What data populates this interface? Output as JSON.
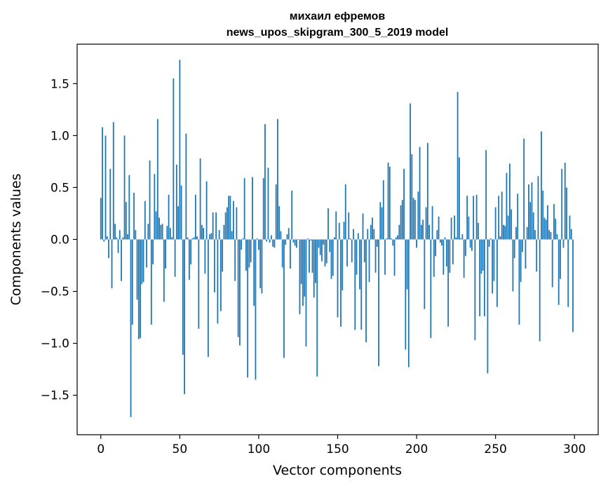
{
  "chart_data": {
    "type": "bar",
    "title": "михаил ефремов",
    "subtitle": "news_upos_skipgram_300_5_2019 model",
    "xlabel": "Vector components",
    "ylabel": "Components values",
    "xlim": [
      -15,
      315
    ],
    "ylim": [
      -1.88,
      1.88
    ],
    "x_ticks": [
      0,
      50,
      100,
      150,
      200,
      250,
      300
    ],
    "x_tick_labels": [
      "0",
      "50",
      "100",
      "150",
      "200",
      "250",
      "300"
    ],
    "y_ticks": [
      -1.5,
      -1.0,
      -0.5,
      0.0,
      0.5,
      1.0,
      1.5
    ],
    "y_tick_labels": [
      "−1.5",
      "−1.0",
      "−0.5",
      "0.0",
      "0.5",
      "1.0",
      "1.5"
    ],
    "bar_color": "#1f77b4",
    "grid": false,
    "x_start": 0,
    "values": [
      0.4,
      1.08,
      -0.02,
      1.0,
      0.03,
      -0.18,
      0.68,
      -0.47,
      1.13,
      0.15,
      0.02,
      -0.13,
      0.09,
      -0.4,
      0.02,
      1.0,
      0.36,
      0.05,
      0.62,
      -1.71,
      -0.82,
      0.45,
      0.09,
      -0.58,
      -0.96,
      -0.95,
      -0.43,
      -0.41,
      0.37,
      -0.27,
      0.15,
      0.76,
      -0.82,
      -0.24,
      0.63,
      0.27,
      1.16,
      0.21,
      0.14,
      0.15,
      -0.6,
      -0.28,
      0.13,
      0.43,
      0.11,
      0.02,
      1.55,
      -0.36,
      0.72,
      0.32,
      1.73,
      0.52,
      -1.11,
      -1.49,
      1.02,
      0.02,
      -0.39,
      -0.24,
      0.01,
      0.02,
      0.43,
      0.03,
      -0.86,
      0.78,
      0.14,
      0.11,
      -0.33,
      0.56,
      -1.13,
      0.05,
      0.06,
      0.26,
      -0.51,
      0.26,
      -0.81,
      0.09,
      -0.69,
      -0.31,
      0.14,
      0.26,
      0.31,
      0.42,
      0.42,
      0.08,
      0.37,
      -0.4,
      0.31,
      -0.94,
      -1.02,
      -0.1,
      0.01,
      0.59,
      -0.3,
      -1.33,
      -0.27,
      -0.22,
      0.6,
      -0.64,
      -1.35,
      0.01,
      -0.1,
      -0.47,
      -0.52,
      0.59,
      1.11,
      -0.02,
      0.69,
      -0.03,
      0.04,
      -0.07,
      -0.08,
      0.53,
      1.16,
      0.32,
      0.08,
      -0.27,
      -1.14,
      -0.05,
      0.05,
      0.11,
      -0.28,
      0.47,
      -0.03,
      -0.06,
      -0.08,
      0.0,
      -0.72,
      -0.43,
      -0.64,
      -0.55,
      -1.03,
      0.01,
      -0.32,
      -0.01,
      -0.32,
      -0.56,
      -0.42,
      -1.32,
      -0.08,
      -0.15,
      -0.21,
      -0.05,
      -0.26,
      -0.23,
      0.3,
      -0.12,
      -0.38,
      -0.35,
      0.02,
      0.27,
      -0.75,
      0.16,
      -0.84,
      -0.49,
      0.17,
      0.53,
      -0.26,
      0.26,
      0.01,
      -0.22,
      0.1,
      -0.87,
      -0.34,
      0.06,
      -0.48,
      -0.87,
      0.25,
      -0.22,
      -0.99,
      0.1,
      -0.41,
      0.14,
      0.21,
      0.1,
      -0.32,
      -0.07,
      -1.22,
      0.36,
      0.31,
      0.57,
      -0.34,
      0.01,
      0.74,
      0.7,
      0.01,
      -0.06,
      -0.35,
      0.02,
      0.04,
      0.14,
      0.33,
      0.38,
      0.68,
      -1.06,
      -0.48,
      -1.23,
      1.31,
      0.82,
      0.4,
      0.38,
      -0.08,
      0.46,
      0.89,
      0.14,
      0.19,
      -0.67,
      0.31,
      0.93,
      0.14,
      -0.95,
      0.32,
      -0.36,
      -0.16,
      0.09,
      0.22,
      -0.03,
      -0.06,
      -0.34,
      0.02,
      -0.26,
      -0.84,
      -0.32,
      0.21,
      -0.24,
      0.23,
      0.02,
      1.42,
      0.79,
      0.01,
      0.05,
      -0.37,
      -0.16,
      0.42,
      0.22,
      -0.08,
      -0.11,
      0.42,
      -0.97,
      0.43,
      0.16,
      -0.74,
      -0.33,
      -0.3,
      -0.74,
      0.86,
      -1.29,
      -0.07,
      0.01,
      -0.52,
      -0.4,
      0.31,
      -0.65,
      0.42,
      0.03,
      0.46,
      0.14,
      0.13,
      0.64,
      0.23,
      0.73,
      0.29,
      -0.5,
      -0.18,
      0.12,
      0.44,
      -0.82,
      -0.41,
      -0.12,
      0.97,
      -0.28,
      0.12,
      0.53,
      0.36,
      0.55,
      0.26,
      0.09,
      -0.31,
      0.61,
      -0.98,
      1.04,
      0.47,
      0.21,
      0.19,
      0.33,
      0.09,
      0.07,
      -0.46,
      0.34,
      0.2,
      0.05,
      -0.63,
      -0.38,
      0.68,
      -0.08,
      0.74,
      0.5,
      -0.65,
      0.23,
      0.1,
      -0.89
    ]
  }
}
